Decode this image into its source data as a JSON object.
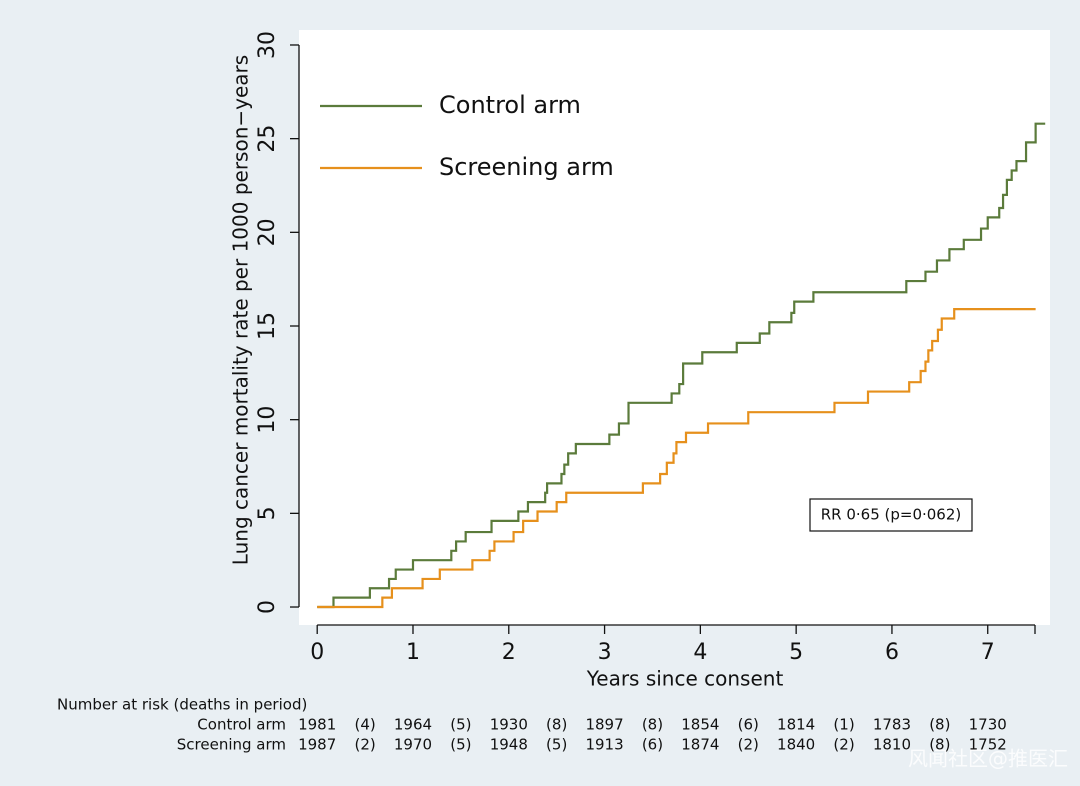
{
  "chart_data": {
    "type": "step",
    "y_label": "Lung cancer mortality rate per 1000 person−years",
    "x_label": "Years since consent",
    "xlim": [
      -0.19,
      7.65
    ],
    "ylim": [
      -0.96,
      30.8
    ],
    "xticks": [
      0,
      1,
      2,
      3,
      4,
      5,
      6,
      7
    ],
    "yticks": [
      0,
      5,
      10,
      15,
      20,
      25,
      30
    ],
    "legend": "top-left",
    "annotation": "RR 0·65 (p=0·062)",
    "series": [
      {
        "name": "Control arm",
        "color": "#5b7b3b",
        "x": [
          0,
          0.17,
          0.55,
          0.75,
          0.82,
          1.0,
          1.4,
          1.45,
          1.55,
          1.82,
          2.1,
          2.2,
          2.38,
          2.4,
          2.55,
          2.58,
          2.62,
          2.7,
          3.05,
          3.15,
          3.25,
          3.7,
          3.78,
          3.82,
          4.02,
          4.38,
          4.62,
          4.72,
          4.95,
          4.98,
          5.18,
          6.15,
          6.35,
          6.47,
          6.6,
          6.75,
          6.93,
          7.0,
          7.12,
          7.16,
          7.2,
          7.25,
          7.3,
          7.4,
          7.5,
          7.6
        ],
        "values": [
          0,
          0.5,
          1.0,
          1.5,
          2.0,
          2.5,
          3.0,
          3.5,
          4.0,
          4.6,
          5.1,
          5.6,
          6.1,
          6.6,
          7.1,
          7.6,
          8.2,
          8.7,
          9.2,
          9.8,
          10.9,
          11.4,
          11.9,
          13.0,
          13.6,
          14.1,
          14.6,
          15.2,
          15.7,
          16.3,
          16.8,
          17.4,
          17.9,
          18.5,
          19.1,
          19.6,
          20.2,
          20.8,
          21.3,
          22.0,
          22.8,
          23.3,
          23.8,
          24.8,
          25.8,
          25.8
        ]
      },
      {
        "name": "Screening arm",
        "color": "#e6901c",
        "x": [
          0,
          0.68,
          0.78,
          1.1,
          1.28,
          1.62,
          1.8,
          1.85,
          2.05,
          2.15,
          2.3,
          2.5,
          2.6,
          3.4,
          3.58,
          3.65,
          3.72,
          3.75,
          3.85,
          4.08,
          4.5,
          5.4,
          5.75,
          6.18,
          6.3,
          6.35,
          6.38,
          6.42,
          6.48,
          6.52,
          6.65,
          7.5
        ],
        "values": [
          0,
          0.5,
          1.0,
          1.5,
          2.0,
          2.5,
          3.0,
          3.5,
          4.0,
          4.6,
          5.1,
          5.6,
          6.1,
          6.6,
          7.1,
          7.7,
          8.2,
          8.8,
          9.3,
          9.8,
          10.4,
          10.9,
          11.5,
          12.0,
          12.6,
          13.1,
          13.7,
          14.2,
          14.8,
          15.4,
          15.9,
          15.9
        ]
      }
    ],
    "risk_table": {
      "title": "Number at risk (deaths in period)",
      "rows": [
        {
          "label": "Control arm",
          "at_risk": [
            1981,
            1964,
            1930,
            1897,
            1854,
            1814,
            1783,
            1730
          ],
          "deaths": [
            "(4)",
            "(5)",
            "(8)",
            "(8)",
            "(6)",
            "(1)",
            "(8)"
          ]
        },
        {
          "label": "Screening arm",
          "at_risk": [
            1987,
            1970,
            1948,
            1913,
            1874,
            1840,
            1810,
            1752
          ],
          "deaths": [
            "(2)",
            "(5)",
            "(5)",
            "(6)",
            "(2)",
            "(2)",
            "(8)"
          ]
        }
      ]
    },
    "watermark": "风闻社区@推医汇"
  }
}
